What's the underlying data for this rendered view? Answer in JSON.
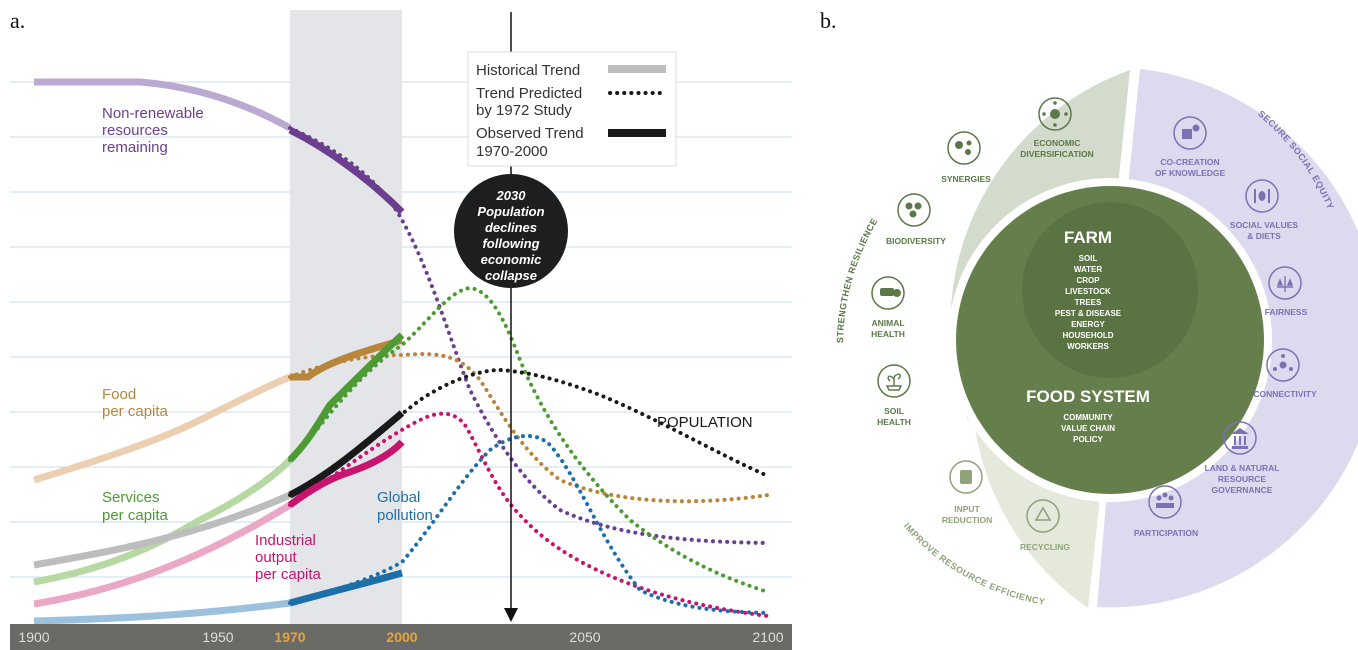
{
  "panel_a": {
    "letter": "a.",
    "x_ticks": [
      "1900",
      "1950",
      "1970",
      "2000",
      "2050",
      "2100"
    ],
    "legend": {
      "historical": "Historical Trend",
      "predicted_line1": "Trend Predicted",
      "predicted_line2": "by 1972 Study",
      "observed_line1": "Observed Trend",
      "observed_line2": "1970-2000"
    },
    "callout": [
      "2030",
      "Population",
      "declines",
      "following",
      "economic",
      "collapse"
    ],
    "series_labels": {
      "nonrenewable": [
        "Non-renewable",
        "resources",
        "remaining"
      ],
      "food": [
        "Food",
        "per capita"
      ],
      "services": [
        "Services",
        "per capita"
      ],
      "industrial": [
        "Industrial",
        "output",
        "per capita"
      ],
      "pollution": [
        "Global",
        "pollution"
      ],
      "population": "POPULATION"
    },
    "colors": {
      "nonrenewable": "#6b3f8e",
      "food": "#b8863b",
      "services": "#4e9a34",
      "industrial": "#c8136f",
      "pollution": "#1c6fa8",
      "population": "#1a1a1a",
      "historical_band": "#e4e5e9",
      "axis_bar": "#6a6b66",
      "highlight_year": "#e8a33a"
    }
  },
  "panel_b": {
    "letter": "b.",
    "core": {
      "farm_title": "FARM",
      "farm_items": [
        "SOIL",
        "WATER",
        "CROP",
        "LIVESTOCK",
        "TREES",
        "PEST & DISEASE",
        "ENERGY",
        "HOUSEHOLD",
        "WORKERS"
      ],
      "food_title": "FOOD SYSTEM",
      "food_items": [
        "COMMUNITY",
        "VALUE CHAIN",
        "POLICY"
      ]
    },
    "segments": {
      "resilience": "STRENGTHEN RESILIENCE",
      "equity": "SECURE SOCIAL EQUITY",
      "efficiency": "IMPROVE RESOURCE EFFICIENCY"
    },
    "items": {
      "soil_health": [
        "SOIL",
        "HEALTH"
      ],
      "animal_health": [
        "ANIMAL",
        "HEALTH"
      ],
      "biodiversity": [
        "BIODIVERSITY"
      ],
      "synergies": [
        "SYNERGIES"
      ],
      "economic_diversification": [
        "ECONOMIC",
        "DIVERSIFICATION"
      ],
      "co_creation": [
        "CO-CREATION",
        "OF KNOWLEDGE"
      ],
      "social_values": [
        "SOCIAL VALUES",
        "& DIETS"
      ],
      "fairness": [
        "FAIRNESS"
      ],
      "connectivity": [
        "CONNECTIVITY"
      ],
      "land_governance": [
        "LAND & NATURAL",
        "RESOURCE",
        "GOVERNANCE"
      ],
      "participation": [
        "PARTICIPATION"
      ],
      "input_reduction": [
        "INPUT",
        "REDUCTION"
      ],
      "recycling": [
        "RECYCLING"
      ]
    },
    "colors": {
      "resilience_band": "#d3dccc",
      "equity_band": "#dcdaee",
      "efficiency_band": "#e4e9dc",
      "core_outer": "#657f4c",
      "core_inner": "#5a7342",
      "resilience_text": "#5c7848",
      "equity_text": "#7c72b2",
      "efficiency_text": "#8fa37a"
    }
  }
}
